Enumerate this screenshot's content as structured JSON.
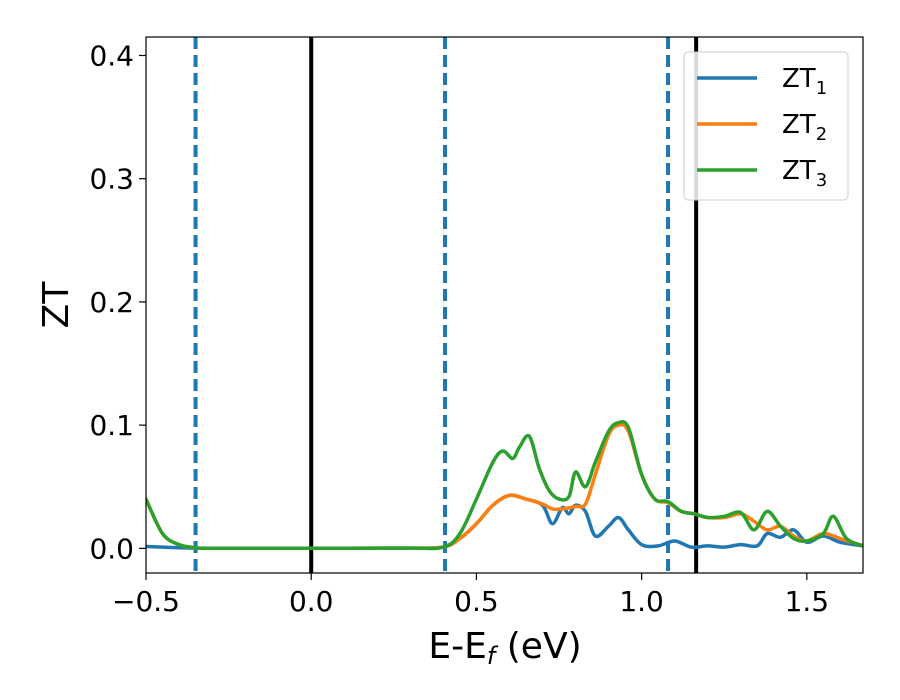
{
  "chart_data": {
    "type": "line",
    "title": "",
    "xlabel": "E-E",
    "xlabel_sub": "f",
    "xlabel_unit": " (eV)",
    "ylabel": "ZT",
    "xlim": [
      -0.5,
      1.67
    ],
    "ylim": [
      -0.02,
      0.415
    ],
    "grid": false,
    "legend_position": "top-right",
    "xticks": [
      {
        "value": -0.5,
        "label": "−0.5"
      },
      {
        "value": 0.0,
        "label": "0.0"
      },
      {
        "value": 0.5,
        "label": "0.5"
      },
      {
        "value": 1.0,
        "label": "1.0"
      },
      {
        "value": 1.5,
        "label": "1.5"
      }
    ],
    "yticks": [
      {
        "value": 0.0,
        "label": "0.0"
      },
      {
        "value": 0.1,
        "label": "0.1"
      },
      {
        "value": 0.2,
        "label": "0.2"
      },
      {
        "value": 0.3,
        "label": "0.3"
      },
      {
        "value": 0.4,
        "label": "0.4"
      }
    ],
    "vlines": [
      {
        "x": -0.35,
        "style": "dashed",
        "color": "#1f77b4"
      },
      {
        "x": 0.0,
        "style": "solid",
        "color": "#000000"
      },
      {
        "x": 0.405,
        "style": "dashed",
        "color": "#1f77b4"
      },
      {
        "x": 1.08,
        "style": "dashed",
        "color": "#1f77b4"
      },
      {
        "x": 1.165,
        "style": "solid",
        "color": "#000000"
      }
    ],
    "series": [
      {
        "name": "ZT",
        "name_sub": "1",
        "color": "#1f77b4",
        "x": [
          -0.5,
          -0.45,
          -0.4,
          -0.35,
          -0.3,
          0.0,
          0.3,
          0.4,
          0.45,
          0.5,
          0.55,
          0.6,
          0.65,
          0.7,
          0.73,
          0.76,
          0.78,
          0.8,
          0.83,
          0.86,
          0.9,
          0.93,
          0.96,
          1.0,
          1.05,
          1.1,
          1.15,
          1.2,
          1.25,
          1.3,
          1.35,
          1.38,
          1.42,
          1.46,
          1.5,
          1.55,
          1.6,
          1.67
        ],
        "y": [
          0.0015,
          0.001,
          0.0005,
          0.0002,
          0.0001,
          0.0001,
          0.0002,
          0.001,
          0.008,
          0.02,
          0.035,
          0.043,
          0.04,
          0.035,
          0.02,
          0.033,
          0.028,
          0.035,
          0.03,
          0.01,
          0.018,
          0.025,
          0.015,
          0.003,
          0.002,
          0.006,
          0.001,
          0.002,
          0.001,
          0.003,
          0.002,
          0.012,
          0.009,
          0.015,
          0.005,
          0.01,
          0.005,
          0.002
        ]
      },
      {
        "name": "ZT",
        "name_sub": "2",
        "color": "#ff7f0e",
        "x": [
          -0.5,
          -0.45,
          -0.4,
          -0.35,
          -0.3,
          0.0,
          0.3,
          0.4,
          0.45,
          0.5,
          0.55,
          0.6,
          0.65,
          0.7,
          0.73,
          0.76,
          0.8,
          0.83,
          0.86,
          0.9,
          0.93,
          0.96,
          1.0,
          1.04,
          1.08,
          1.12,
          1.16,
          1.2,
          1.25,
          1.3,
          1.34,
          1.38,
          1.42,
          1.46,
          1.5,
          1.55,
          1.6,
          1.67
        ],
        "y": [
          0.04,
          0.012,
          0.003,
          0.0005,
          0.0001,
          0.0001,
          0.0002,
          0.001,
          0.008,
          0.02,
          0.035,
          0.043,
          0.04,
          0.036,
          0.032,
          0.032,
          0.034,
          0.036,
          0.06,
          0.092,
          0.1,
          0.095,
          0.06,
          0.04,
          0.037,
          0.03,
          0.028,
          0.025,
          0.025,
          0.028,
          0.022,
          0.015,
          0.018,
          0.01,
          0.006,
          0.012,
          0.008,
          0.002
        ]
      },
      {
        "name": "ZT",
        "name_sub": "3",
        "color": "#2ca02c",
        "x": [
          -0.5,
          -0.45,
          -0.4,
          -0.35,
          -0.3,
          0.0,
          0.3,
          0.4,
          0.45,
          0.5,
          0.55,
          0.58,
          0.61,
          0.63,
          0.66,
          0.69,
          0.72,
          0.75,
          0.78,
          0.8,
          0.83,
          0.86,
          0.9,
          0.93,
          0.96,
          1.0,
          1.04,
          1.08,
          1.12,
          1.16,
          1.2,
          1.25,
          1.3,
          1.34,
          1.38,
          1.42,
          1.46,
          1.5,
          1.55,
          1.58,
          1.62,
          1.67
        ],
        "y": [
          0.04,
          0.012,
          0.003,
          0.0005,
          0.0001,
          0.0001,
          0.0002,
          0.001,
          0.012,
          0.04,
          0.07,
          0.079,
          0.073,
          0.082,
          0.091,
          0.065,
          0.047,
          0.04,
          0.042,
          0.062,
          0.05,
          0.07,
          0.095,
          0.102,
          0.098,
          0.06,
          0.04,
          0.038,
          0.03,
          0.028,
          0.025,
          0.026,
          0.029,
          0.015,
          0.03,
          0.018,
          0.008,
          0.006,
          0.012,
          0.026,
          0.008,
          0.002
        ]
      }
    ]
  }
}
